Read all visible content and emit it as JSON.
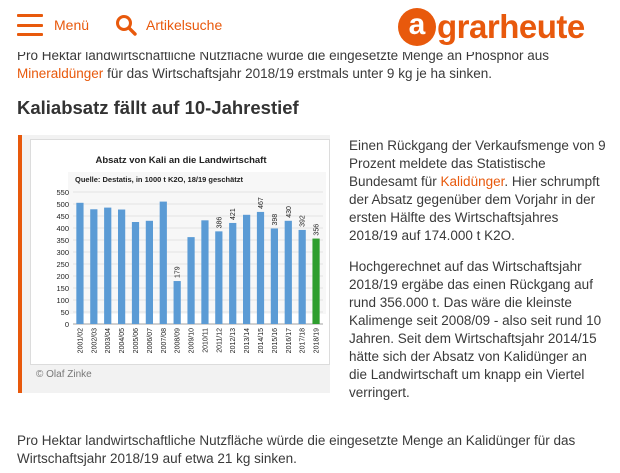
{
  "header": {
    "menu_label": "Menü",
    "search_label": "Artikelsuche",
    "logo_letter": "a",
    "logo_rest": "grarheute",
    "accent_color": "#e8590c"
  },
  "intro": {
    "text_before": "Pro Hektar landwirtschaftliche Nutzfläche würde die eingesetzte Menge an Phosphor aus ",
    "link": "Mineraldünger",
    "text_after": " für das Wirtschaftsjahr 2018/19 erstmals unter 9 kg je ha sinken."
  },
  "heading": "Kaliabsatz fällt auf 10-Jahrestief",
  "figure": {
    "caption": "© Olaf Zinke"
  },
  "side": {
    "p1_before": "Einen Rückgang der Verkaufsmenge von 9 Prozent meldete das Statistische Bundesamt für ",
    "p1_link": "Kalidünger",
    "p1_after": ". Hier schrumpft der Absatz gegenüber dem Vorjahr in der ersten Hälfte des Wirtschaftsjahres 2018/19 auf 174.000 t K2O.",
    "p2": "Hochgerechnet auf das Wirtschaftsjahr 2018/19 ergäbe das einen Rückgang auf rund 356.000 t. Das wäre die kleinste Kalimenge seit 2008/09 - also seit rund 10 Jahren. Seit dem Wirtschaftsjahr 2014/15 hätte sich der Absatz von Kalidünger an die Landwirtschaft um knapp ein Viertel verringert."
  },
  "bottom": {
    "text": "Pro Hektar landwirtschaftliche Nutzfläche würde die eingesetzte Menge an Kalidünger für das Wirtschaftsjahr 2018/19 auf etwa 21 kg sinken."
  },
  "chart_data": {
    "type": "bar",
    "title": "Absatz von Kali an die Landwirtschaft",
    "subtitle": "Quelle: Destatis, in 1000 t K2O, 18/19 geschätzt",
    "ylim": [
      0,
      550
    ],
    "yticks": [
      0,
      50,
      100,
      150,
      200,
      250,
      300,
      350,
      400,
      450,
      500,
      550
    ],
    "grid": true,
    "categories": [
      "2001/02",
      "2002/03",
      "2003/04",
      "2004/05",
      "2005/06",
      "2006/07",
      "2007/08",
      "2008/09",
      "2009/10",
      "2010/11",
      "2011/12",
      "2012/13",
      "2013/14",
      "2014/15",
      "2015/16",
      "2016/17",
      "2017/18",
      "2018/19"
    ],
    "values": [
      505,
      478,
      485,
      477,
      425,
      430,
      510,
      179,
      362,
      432,
      386,
      421,
      455,
      467,
      398,
      430,
      392,
      356
    ],
    "labels": [
      "",
      "",
      "",
      "",
      "",
      "",
      "",
      "179",
      "",
      "",
      "386",
      "421",
      "",
      "467",
      "398",
      "430",
      "392",
      "356"
    ],
    "bar_color": "#5b9bd5",
    "highlight_color": "#2e9e2e",
    "highlight_index": 17
  }
}
